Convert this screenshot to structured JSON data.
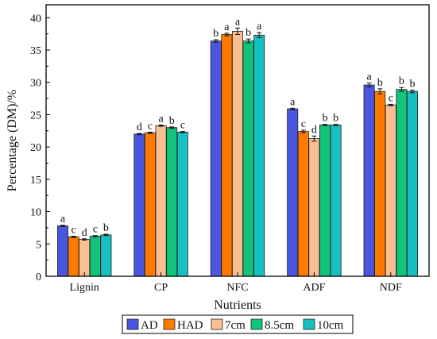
{
  "chart_data": {
    "type": "bar",
    "categories": [
      "Lignin",
      "CP",
      "NFC",
      "ADF",
      "NDF"
    ],
    "xlabel": "Nutrients",
    "ylabel": "Percentage (DM)/%",
    "ylim": [
      0,
      42
    ],
    "yticks": [
      0,
      5,
      10,
      15,
      20,
      25,
      30,
      35,
      40
    ],
    "grid": false,
    "legend_position": "bottom",
    "series": [
      {
        "name": "AD",
        "color": "#4a55e0",
        "values": [
          7.8,
          22.0,
          36.4,
          25.9,
          29.6
        ],
        "errors": [
          0.1,
          0.1,
          0.2,
          0.1,
          0.3
        ],
        "labels": [
          "a",
          "d",
          "b",
          "a",
          "a"
        ]
      },
      {
        "name": "HAD",
        "color": "#ff7a00",
        "values": [
          6.1,
          22.2,
          37.4,
          22.4,
          28.6
        ],
        "errors": [
          0.1,
          0.1,
          0.2,
          0.2,
          0.4
        ],
        "labels": [
          "c",
          "c",
          "a",
          "c",
          "b"
        ]
      },
      {
        "name": "7cm",
        "color": "#f9bf92",
        "values": [
          5.7,
          23.3,
          37.9,
          21.3,
          26.5
        ],
        "errors": [
          0.1,
          0.1,
          0.5,
          0.4,
          0.1
        ],
        "labels": [
          "d",
          "a",
          "a",
          "d",
          "c"
        ]
      },
      {
        "name": "8.5cm",
        "color": "#10c47a",
        "values": [
          6.2,
          23.0,
          36.4,
          23.4,
          28.9
        ],
        "errors": [
          0.1,
          0.1,
          0.3,
          0.1,
          0.3
        ],
        "labels": [
          "c",
          "b",
          "b",
          "b",
          "b"
        ]
      },
      {
        "name": "10cm",
        "color": "#16c0c0",
        "values": [
          6.4,
          22.3,
          37.3,
          23.4,
          28.6
        ],
        "errors": [
          0.1,
          0.1,
          0.4,
          0.1,
          0.2
        ],
        "labels": [
          "b",
          "c",
          "a",
          "b",
          "b"
        ]
      }
    ]
  }
}
